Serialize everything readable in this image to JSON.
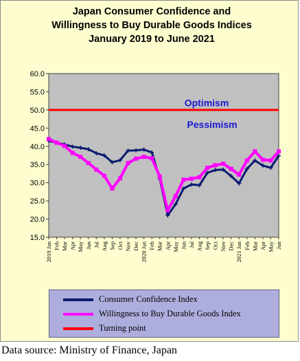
{
  "chart_data": {
    "type": "line",
    "title_lines": [
      "Japan Consumer Confidence and",
      "Willingness to Buy Durable Goods Indices",
      "January 2019 to June 2021"
    ],
    "ylim": [
      15,
      60
    ],
    "yticks": [
      "60.0",
      "55.0",
      "50.0",
      "45.0",
      "40.0",
      "35.0",
      "30.0",
      "25.0",
      "20.0",
      "15.0"
    ],
    "grid": false,
    "x": [
      "2019 Jan",
      "Feb",
      "Mar",
      "Apr",
      "May",
      "Jun",
      "Jul",
      "Aug",
      "Sep",
      "Oct",
      "Nov",
      "Dec",
      "2020 Jan",
      "Feb",
      "Mar",
      "Apr",
      "May",
      "Jun",
      "Jul",
      "Aug",
      "Sep",
      "Oct",
      "Nov",
      "Dec",
      "2021 Jan",
      "Feb",
      "Mar",
      "Apr",
      "May",
      "Jun"
    ],
    "series": [
      {
        "name": "Consumer Confidence Index",
        "color": "#0b1a6e",
        "values": [
          41.5,
          41.0,
          40.5,
          39.9,
          39.6,
          39.2,
          38.1,
          37.5,
          35.6,
          36.2,
          38.8,
          38.9,
          39.1,
          38.3,
          31.1,
          21.0,
          24.1,
          28.4,
          29.5,
          29.3,
          32.7,
          33.5,
          33.6,
          31.8,
          29.8,
          33.8,
          36.1,
          34.7,
          34.1,
          37.4
        ]
      },
      {
        "name": "Willingness to Buy Durable Goods Index",
        "color": "#ff00ff",
        "values": [
          42.0,
          41.0,
          40.1,
          38.2,
          37.1,
          35.4,
          33.6,
          31.9,
          28.4,
          31.2,
          35.4,
          36.6,
          37.1,
          36.7,
          31.7,
          22.4,
          26.3,
          30.8,
          31.1,
          31.5,
          34.1,
          34.8,
          35.2,
          33.8,
          32.2,
          36.1,
          38.6,
          36.3,
          36.1,
          38.6
        ]
      },
      {
        "name": "Turning point",
        "color": "#ff0000",
        "values": [
          50,
          50,
          50,
          50,
          50,
          50,
          50,
          50,
          50,
          50,
          50,
          50,
          50,
          50,
          50,
          50,
          50,
          50,
          50,
          50,
          50,
          50,
          50,
          50,
          50,
          50,
          50,
          50,
          50,
          50
        ]
      }
    ],
    "annotations": [
      {
        "text": "Optimism",
        "color": "#1a1ad0"
      },
      {
        "text": "Pessimism",
        "color": "#1a1ad0"
      }
    ],
    "plot_background": "#c0c0c0",
    "legend_background": "#aeaede"
  },
  "source_note": "Data source: Ministry of Finance, Japan"
}
